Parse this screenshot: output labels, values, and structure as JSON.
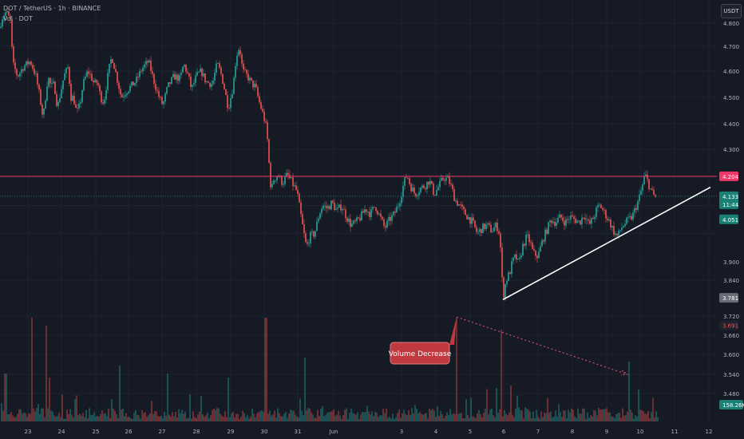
{
  "header": {
    "symbol_line": "DOT / TetherUS · 1h · BINANCE",
    "indicator_line": "Vol · DOT"
  },
  "toolbar": {
    "currency_label": "USDT"
  },
  "colors": {
    "background": "#161a25",
    "up": "#26a69a",
    "down": "#ef5350",
    "resistance": "#f23668",
    "current_price_line": "#1a7f74",
    "trendline": "#ffffff",
    "volume_trend": "#e85a7a",
    "callout": "#c0393e",
    "axis_text": "#b2b5be",
    "grid": "#1f2330"
  },
  "chart_data": {
    "type": "candlestick",
    "y_axis_labels": [
      "4.800",
      "4.700",
      "4.600",
      "4.500",
      "4.400",
      "4.300",
      "3.900",
      "3.840",
      "3.720",
      "3.660",
      "3.600",
      "3.540",
      "3.480"
    ],
    "x_axis_labels": [
      "23",
      "24",
      "25",
      "26",
      "27",
      "28",
      "29",
      "30",
      "31",
      "Jun",
      "3",
      "4",
      "5",
      "6",
      "7",
      "8",
      "9",
      "10",
      "11",
      "12"
    ],
    "ylim": [
      3.43,
      4.83
    ],
    "price_tags": [
      {
        "label": "4.204",
        "value": 4.204,
        "color": "#f23668",
        "text_color": "#ffffff"
      },
      {
        "label": "4.133",
        "sub": "11:44",
        "value": 4.133,
        "color": "#1a7f74",
        "text_color": "#ffffff"
      },
      {
        "label": "4.051",
        "value": 4.051,
        "color": "#1a7f74",
        "text_color": "#ffffff"
      },
      {
        "label": "3.781",
        "value": 3.781,
        "color": "#6a6d78",
        "text_color": "#ffffff"
      },
      {
        "label": "3.691",
        "value": 3.691,
        "color": "#1e222d",
        "text_color": "#ef5350"
      },
      {
        "label": "158.26K",
        "value": 3.445,
        "color": "#1a7f74",
        "text_color": "#ffffff"
      }
    ],
    "resistance_level": 4.204,
    "current_price": 4.133,
    "price_path": [
      [
        0,
        4.78
      ],
      [
        2,
        4.82
      ],
      [
        8,
        4.85
      ],
      [
        13,
        4.81
      ],
      [
        16,
        4.63
      ],
      [
        22,
        4.58
      ],
      [
        30,
        4.62
      ],
      [
        38,
        4.64
      ],
      [
        45,
        4.58
      ],
      [
        50,
        4.5
      ],
      [
        54,
        4.42
      ],
      [
        60,
        4.58
      ],
      [
        64,
        4.54
      ],
      [
        68,
        4.55
      ],
      [
        72,
        4.46
      ],
      [
        76,
        4.52
      ],
      [
        80,
        4.58
      ],
      [
        86,
        4.62
      ],
      [
        88,
        4.5
      ],
      [
        92,
        4.5
      ],
      [
        96,
        4.44
      ],
      [
        100,
        4.47
      ],
      [
        104,
        4.55
      ],
      [
        110,
        4.6
      ],
      [
        114,
        4.58
      ],
      [
        118,
        4.55
      ],
      [
        122,
        4.56
      ],
      [
        126,
        4.5
      ],
      [
        130,
        4.48
      ],
      [
        136,
        4.6
      ],
      [
        140,
        4.66
      ],
      [
        146,
        4.58
      ],
      [
        152,
        4.5
      ],
      [
        160,
        4.53
      ],
      [
        170,
        4.56
      ],
      [
        178,
        4.61
      ],
      [
        186,
        4.64
      ],
      [
        192,
        4.57
      ],
      [
        198,
        4.51
      ],
      [
        204,
        4.47
      ],
      [
        210,
        4.54
      ],
      [
        218,
        4.58
      ],
      [
        226,
        4.57
      ],
      [
        230,
        4.63
      ],
      [
        236,
        4.58
      ],
      [
        240,
        4.53
      ],
      [
        246,
        4.58
      ],
      [
        252,
        4.6
      ],
      [
        258,
        4.56
      ],
      [
        266,
        4.55
      ],
      [
        272,
        4.63
      ],
      [
        276,
        4.6
      ],
      [
        280,
        4.55
      ],
      [
        286,
        4.46
      ],
      [
        292,
        4.54
      ],
      [
        296,
        4.66
      ],
      [
        300,
        4.7
      ],
      [
        304,
        4.6
      ],
      [
        310,
        4.58
      ],
      [
        316,
        4.55
      ],
      [
        320,
        4.54
      ],
      [
        324,
        4.49
      ],
      [
        330,
        4.43
      ],
      [
        334,
        4.38
      ],
      [
        337,
        4.25
      ],
      [
        340,
        4.14
      ],
      [
        342,
        4.19
      ],
      [
        348,
        4.21
      ],
      [
        354,
        4.18
      ],
      [
        360,
        4.21
      ],
      [
        366,
        4.18
      ],
      [
        372,
        4.15
      ],
      [
        376,
        4.08
      ],
      [
        380,
        4.01
      ],
      [
        384,
        3.95
      ],
      [
        388,
        3.99
      ],
      [
        394,
        4.0
      ],
      [
        400,
        4.07
      ],
      [
        404,
        4.1
      ],
      [
        410,
        4.09
      ],
      [
        416,
        4.11
      ],
      [
        422,
        4.08
      ],
      [
        428,
        4.1
      ],
      [
        434,
        4.06
      ],
      [
        440,
        4.03
      ],
      [
        446,
        4.04
      ],
      [
        452,
        4.06
      ],
      [
        458,
        4.09
      ],
      [
        464,
        4.07
      ],
      [
        470,
        4.1
      ],
      [
        476,
        4.06
      ],
      [
        482,
        4.02
      ],
      [
        488,
        4.05
      ],
      [
        494,
        4.07
      ],
      [
        500,
        4.11
      ],
      [
        506,
        4.18
      ],
      [
        510,
        4.21
      ],
      [
        514,
        4.17
      ],
      [
        520,
        4.14
      ],
      [
        526,
        4.16
      ],
      [
        532,
        4.17
      ],
      [
        538,
        4.19
      ],
      [
        544,
        4.14
      ],
      [
        550,
        4.17
      ],
      [
        556,
        4.2
      ],
      [
        562,
        4.19
      ],
      [
        566,
        4.16
      ],
      [
        570,
        4.12
      ],
      [
        576,
        4.1
      ],
      [
        580,
        4.08
      ],
      [
        586,
        4.06
      ],
      [
        592,
        4.04
      ],
      [
        598,
        4.0
      ],
      [
        604,
        4.02
      ],
      [
        610,
        4.03
      ],
      [
        616,
        4.01
      ],
      [
        622,
        4.03
      ],
      [
        626,
        4.0
      ],
      [
        628,
        3.9
      ],
      [
        630,
        3.78
      ],
      [
        634,
        3.84
      ],
      [
        638,
        3.86
      ],
      [
        642,
        3.9
      ],
      [
        646,
        3.92
      ],
      [
        650,
        3.89
      ],
      [
        654,
        3.95
      ],
      [
        660,
        3.99
      ],
      [
        664,
        3.97
      ],
      [
        668,
        3.93
      ],
      [
        674,
        3.92
      ],
      [
        680,
        3.98
      ],
      [
        686,
        4.02
      ],
      [
        690,
        4.05
      ],
      [
        696,
        4.04
      ],
      [
        702,
        4.06
      ],
      [
        708,
        4.04
      ],
      [
        714,
        4.06
      ],
      [
        720,
        4.05
      ],
      [
        726,
        4.04
      ],
      [
        732,
        4.07
      ],
      [
        738,
        4.03
      ],
      [
        744,
        4.06
      ],
      [
        748,
        4.09
      ],
      [
        752,
        4.1
      ],
      [
        758,
        4.07
      ],
      [
        764,
        4.04
      ],
      [
        770,
        4.0
      ],
      [
        774,
        3.99
      ],
      [
        778,
        4.02
      ],
      [
        784,
        4.04
      ],
      [
        788,
        4.05
      ],
      [
        792,
        4.06
      ],
      [
        796,
        4.09
      ],
      [
        800,
        4.12
      ],
      [
        804,
        4.16
      ],
      [
        808,
        4.21
      ],
      [
        812,
        4.18
      ],
      [
        816,
        4.15
      ],
      [
        820,
        4.13
      ],
      [
        824,
        4.133
      ]
    ],
    "trendline": {
      "from": [
        630,
        3.775
      ],
      "to": [
        890,
        4.165
      ]
    },
    "volume_trend": {
      "from": [
        572,
        3.717
      ],
      "to": [
        786,
        3.54
      ]
    },
    "annotations": [
      {
        "text": "Volume Decrease",
        "value": 3.605
      }
    ]
  }
}
